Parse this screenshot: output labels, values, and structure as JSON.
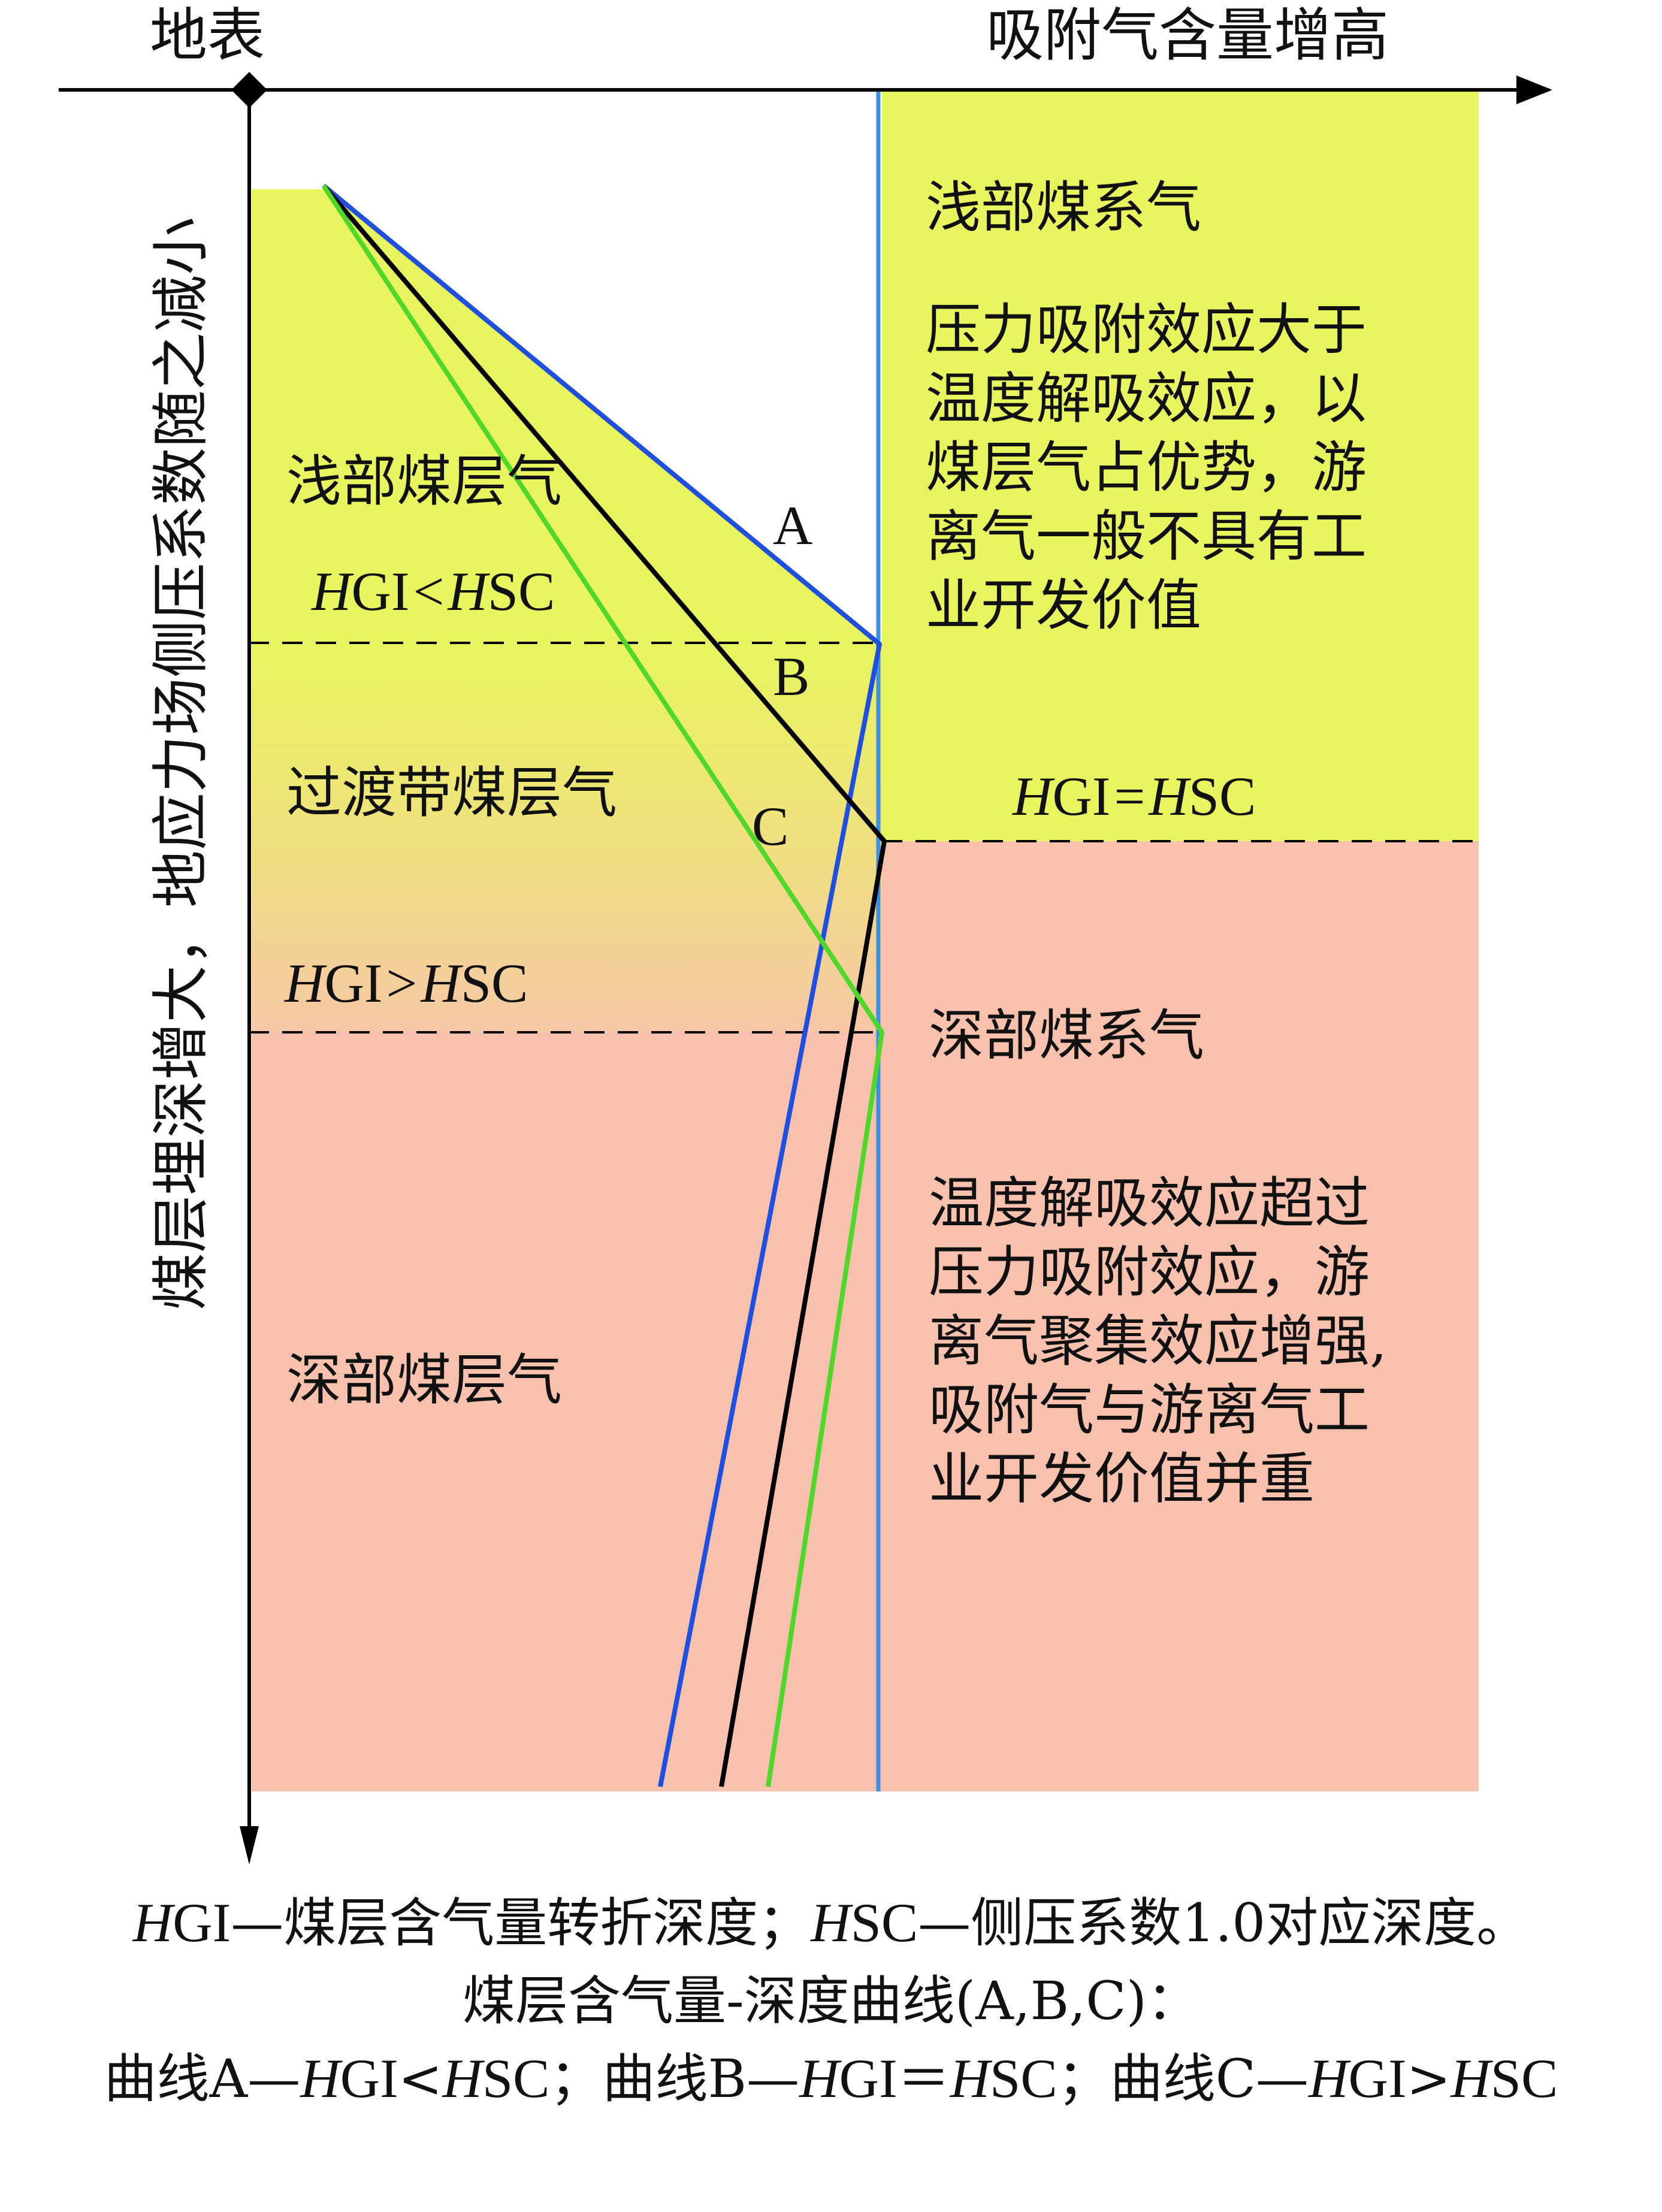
{
  "axes": {
    "origin_label": "地表",
    "x_label": "吸附气含量增高",
    "y_label": "煤层埋深增大，地应力场侧压系数随之减小"
  },
  "zones_left": {
    "shallow": "浅部煤层气",
    "transition": "过渡带煤层气",
    "deep": "深部煤层气"
  },
  "boundaries": {
    "upper": {
      "H": "H",
      "gi": "GI",
      "op": "<",
      "sc": "SC"
    },
    "middle": {
      "H": "H",
      "gi": "GI",
      "op": "=",
      "sc": "SC"
    },
    "lower": {
      "H": "H",
      "gi": "GI",
      "op": ">",
      "sc": "SC"
    }
  },
  "curves": {
    "A": {
      "label": "A",
      "color": "#1f4fe0"
    },
    "B": {
      "label": "B",
      "color": "#000000"
    },
    "C": {
      "label": "C",
      "color": "#4fd82a"
    }
  },
  "right_panel": {
    "shallow_title": "浅部煤系气",
    "shallow_desc": [
      "压力吸附效应大于",
      "温度解吸效应，以",
      "煤层气占优势，游",
      "离气一般不具有工",
      "业开发价值"
    ],
    "deep_title": "深部煤系气",
    "deep_desc": [
      "温度解吸效应超过",
      "压力吸附效应，游",
      "离气聚集效应增强,",
      "吸附气与游离气工",
      "业开发价值并重"
    ]
  },
  "colors": {
    "shallow_fill": "#e8f55e",
    "deep_fill": "#f8c1ad",
    "divider_line": "#3d8fe0"
  },
  "legend": {
    "line1": {
      "H1": "H",
      "gi": "GI",
      "t1": "—煤层含气量转折深度；",
      "H2": "H",
      "sc": "SC",
      "t2": "—侧压系数1.0对应深度。"
    },
    "line2": "煤层含气量-深度曲线(A,B,C)：",
    "line3": {
      "a_pre": "曲线A—",
      "a_H1": "H",
      "a_gi": "GI",
      "a_op": "<",
      "a_H2": "H",
      "a_sc": "SC",
      "a_sep": "；",
      "b_pre": "曲线B—",
      "b_H1": "H",
      "b_gi": "GI",
      "b_op": "＝",
      "b_H2": "H",
      "b_sc": "SC",
      "b_sep": "；",
      "c_pre": "曲线C—",
      "c_H1": "H",
      "c_gi": "GI",
      "c_op": ">",
      "c_H2": "H",
      "c_sc": "SC"
    }
  }
}
